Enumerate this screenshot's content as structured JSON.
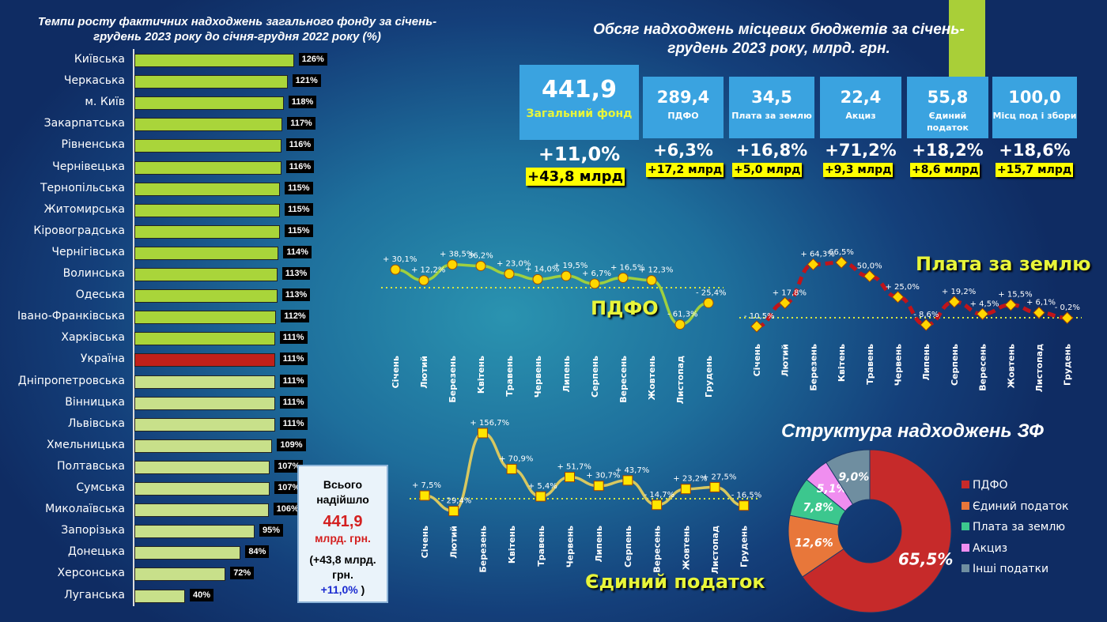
{
  "left_title": "Темпи росту фактичних надходжень загального фонду за січень-грудень 2023 року до січня-грудня 2022 року (%)",
  "regions": [
    {
      "name": "Київська",
      "value": 126,
      "label": "126%"
    },
    {
      "name": "Черкаська",
      "value": 121,
      "label": "121%"
    },
    {
      "name": "м. Київ",
      "value": 118,
      "label": "118%"
    },
    {
      "name": "Закарпатська",
      "value": 117,
      "label": "117%"
    },
    {
      "name": "Рівненська",
      "value": 116,
      "label": "116%"
    },
    {
      "name": "Чернівецька",
      "value": 116,
      "label": "116%"
    },
    {
      "name": "Тернопільська",
      "value": 115,
      "label": "115%"
    },
    {
      "name": "Житомирська",
      "value": 115,
      "label": "115%"
    },
    {
      "name": "Кіровоградська",
      "value": 115,
      "label": "115%"
    },
    {
      "name": "Чернігівська",
      "value": 114,
      "label": "114%"
    },
    {
      "name": "Волинська",
      "value": 113,
      "label": "113%"
    },
    {
      "name": "Одеська",
      "value": 113,
      "label": "113%"
    },
    {
      "name": "Івано-Франківська",
      "value": 112,
      "label": "112%"
    },
    {
      "name": "Харківська",
      "value": 111,
      "label": "111%"
    },
    {
      "name": "Україна",
      "value": 111,
      "label": "111%"
    },
    {
      "name": "Дніпропетровська",
      "value": 111,
      "label": "111%"
    },
    {
      "name": "Вінницька",
      "value": 111,
      "label": "111%"
    },
    {
      "name": "Львівська",
      "value": 111,
      "label": "111%"
    },
    {
      "name": "Хмельницька",
      "value": 109,
      "label": "109%"
    },
    {
      "name": "Полтавська",
      "value": 107,
      "label": "107%"
    },
    {
      "name": "Сумська",
      "value": 107,
      "label": "107%"
    },
    {
      "name": "Миколаївська",
      "value": 106,
      "label": "106%"
    },
    {
      "name": "Запорізька",
      "value": 95,
      "label": "95%"
    },
    {
      "name": "Донецька",
      "value": 84,
      "label": "84%"
    },
    {
      "name": "Херсонська",
      "value": 72,
      "label": "72%"
    },
    {
      "name": "Луганська",
      "value": 40,
      "label": "40%"
    }
  ],
  "total_box": {
    "l1": "Всього",
    "l2": "надійшло",
    "amount": "441,9",
    "unit": "млрд. грн.",
    "l3": "(+43,8 млрд.",
    "l4": "грн.",
    "pct": "+11,0%",
    "close": " )"
  },
  "right_title": "Обсяг надходжень місцевих бюджетів за січень-грудень 2023 року, млрд. грн.",
  "cards": [
    {
      "value": "441,9",
      "name": "Загальний фонд",
      "pct": "+11,0%",
      "delta": "+43,8 млрд"
    },
    {
      "value": "289,4",
      "name": "ПДФО",
      "pct": "+6,3%",
      "delta": "+17,2 млрд"
    },
    {
      "value": "34,5",
      "name": "Плата за землю",
      "pct": "+16,8%",
      "delta": "+5,0 млрд"
    },
    {
      "value": "22,4",
      "name": "Акциз",
      "pct": "+71,2%",
      "delta": "+9,3 млрд"
    },
    {
      "value": "55,8",
      "name": "Єдиний податок",
      "pct": "+18,2%",
      "delta": "+8,6 млрд"
    },
    {
      "value": "100,0",
      "name": "Місц под і збори",
      "pct": "+18,6%",
      "delta": "+15,7 млрд"
    }
  ],
  "colors": {
    "bar": "#a9d53a",
    "ukraine": "#c0201a",
    "pdfo_line": "#9fd040",
    "land_line": "#c0141a",
    "single_line": "#d8c860"
  },
  "chart_data": [
    {
      "type": "bar",
      "title": "Темпи росту фактичних надходжень загального фонду",
      "unit": "%",
      "source": "regions"
    },
    {
      "type": "line",
      "title": "ПДФО",
      "categories": [
        "Січень",
        "Лютий",
        "Березень",
        "Квітень",
        "Травень",
        "Червень",
        "Липень",
        "Серпень",
        "Вересень",
        "Жовтень",
        "Листопад",
        "Грудень"
      ],
      "values": [
        30.1,
        12.2,
        38.5,
        36.2,
        23.0,
        14.0,
        19.5,
        6.7,
        16.5,
        12.3,
        -61.3,
        -25.4
      ],
      "labels": [
        "+ 30,1%",
        "+ 12,2%",
        "+ 38,5%",
        "36,2%",
        "+ 23,0%",
        "+ 14,0%",
        "+ 19,5%",
        "+ 6,7%",
        "+ 16,5%",
        "+ 12,3%",
        "- 61,3%",
        "- 25,4%"
      ]
    },
    {
      "type": "line",
      "title": "Плата за землю",
      "categories": [
        "Січень",
        "Лютий",
        "Березень",
        "Квітень",
        "Травень",
        "Червень",
        "Липень",
        "Серпень",
        "Вересень",
        "Жовтень",
        "Листопад",
        "Грудень"
      ],
      "values": [
        -10.5,
        17.8,
        64.3,
        66.5,
        50.0,
        25.0,
        -8.6,
        19.2,
        4.5,
        15.5,
        6.1,
        -0.2
      ],
      "labels": [
        "- 10,5%",
        "+ 17,8%",
        "+ 64,3%",
        "66,5%",
        "50,0%",
        "+ 25,0%",
        "- 8,6%",
        "+ 19,2%",
        "+ 4,5%",
        "+ 15,5%",
        "+ 6,1%",
        "- 0,2%"
      ]
    },
    {
      "type": "line",
      "title": "Єдиний податок",
      "categories": [
        "Січень",
        "Лютий",
        "Березень",
        "Квітень",
        "Травень",
        "Червень",
        "Липень",
        "Серпень",
        "Вересень",
        "Жовтень",
        "Листопад",
        "Грудень"
      ],
      "values": [
        7.5,
        -29.4,
        156.7,
        70.9,
        5.4,
        51.7,
        30.7,
        43.7,
        -14.7,
        23.2,
        27.5,
        -16.5
      ],
      "labels": [
        "+ 7,5%",
        "- 29,4%",
        "+ 156,7%",
        "+ 70,9%",
        "+ 5,4%",
        "+ 51,7%",
        "+ 30,7%",
        "+ 43,7%",
        "- 14,7%",
        "+ 23,2%",
        "+ 27,5%",
        "- 16,5%"
      ]
    },
    {
      "type": "pie",
      "title": "Структура надходжень ЗФ",
      "categories": [
        "ПДФО",
        "Єдиний податок",
        "Плата за землю",
        "Акциз",
        "Інші податки"
      ],
      "values": [
        65.5,
        12.6,
        7.8,
        5.1,
        9.0
      ],
      "labels": [
        "65,5%",
        "12,6%",
        "7,8%",
        "5,1%",
        "9,0%"
      ],
      "colors": [
        "#c62a2a",
        "#e8773a",
        "#3cc78e",
        "#f08ef0",
        "#6f8ea0"
      ],
      "legend": "right"
    }
  ]
}
